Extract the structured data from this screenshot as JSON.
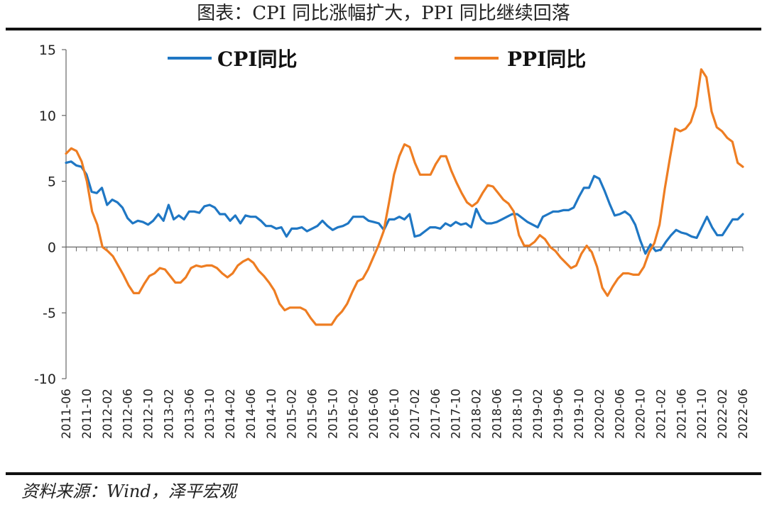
{
  "title": "图表：CPI 同比涨幅扩大，PPI 同比继续回落",
  "source": "资料来源：Wind，泽平宏观",
  "colors": {
    "cpi": "#1f77c4",
    "ppi": "#ee7d22",
    "axis": "#666666"
  },
  "chart_data": {
    "type": "line",
    "title": "图表：CPI 同比涨幅扩大，PPI 同比继续回落",
    "ylim": [
      -10,
      15
    ],
    "yticks": [
      15,
      10,
      5,
      0,
      -5,
      -10
    ],
    "grid": false,
    "legend_position": "top",
    "x_start": "2011-06",
    "x_end": "2022-06",
    "xtick_labels": [
      "2011-06",
      "2011-10",
      "2012-02",
      "2012-06",
      "2012-10",
      "2013-02",
      "2013-06",
      "2013-10",
      "2014-02",
      "2014-06",
      "2014-10",
      "2015-02",
      "2015-06",
      "2015-10",
      "2016-02",
      "2016-06",
      "2016-10",
      "2017-02",
      "2017-06",
      "2017-10",
      "2018-02",
      "2018-06",
      "2018-10",
      "2019-02",
      "2019-06",
      "2019-10",
      "2020-02",
      "2020-06",
      "2020-10",
      "2021-02",
      "2021-06",
      "2021-10",
      "2022-02",
      "2022-06"
    ],
    "series": [
      {
        "name": "CPI同比",
        "color": "#1f77c4",
        "values": [
          6.4,
          6.5,
          6.2,
          6.1,
          5.5,
          4.2,
          4.1,
          4.5,
          3.2,
          3.6,
          3.4,
          3.0,
          2.2,
          1.8,
          2.0,
          1.9,
          1.7,
          2.0,
          2.5,
          2.0,
          3.2,
          2.1,
          2.4,
          2.1,
          2.7,
          2.7,
          2.6,
          3.1,
          3.2,
          3.0,
          2.5,
          2.5,
          2.0,
          2.4,
          1.8,
          2.4,
          2.3,
          2.3,
          2.0,
          1.6,
          1.6,
          1.4,
          1.5,
          0.8,
          1.4,
          1.4,
          1.5,
          1.2,
          1.4,
          1.6,
          2.0,
          1.6,
          1.3,
          1.5,
          1.6,
          1.8,
          2.3,
          2.3,
          2.3,
          2.0,
          1.9,
          1.8,
          1.3,
          2.1,
          2.1,
          2.3,
          2.1,
          2.5,
          0.8,
          0.9,
          1.2,
          1.5,
          1.5,
          1.4,
          1.8,
          1.6,
          1.9,
          1.7,
          1.8,
          1.5,
          2.9,
          2.1,
          1.8,
          1.8,
          1.9,
          2.1,
          2.3,
          2.5,
          2.5,
          2.2,
          1.9,
          1.7,
          1.5,
          2.3,
          2.5,
          2.7,
          2.7,
          2.8,
          2.8,
          3.0,
          3.8,
          4.5,
          4.5,
          5.4,
          5.2,
          4.3,
          3.3,
          2.4,
          2.5,
          2.7,
          2.4,
          1.7,
          0.5,
          -0.5,
          0.2,
          -0.3,
          -0.2,
          0.4,
          0.9,
          1.3,
          1.1,
          1.0,
          0.8,
          0.7,
          1.5,
          2.3,
          1.5,
          0.9,
          0.9,
          1.5,
          2.1,
          2.1,
          2.5
        ]
      },
      {
        "name": "PPI同比",
        "color": "#ee7d22",
        "values": [
          7.1,
          7.5,
          7.3,
          6.5,
          5.0,
          2.7,
          1.7,
          0.0,
          -0.3,
          -0.7,
          -1.4,
          -2.1,
          -2.9,
          -3.5,
          -3.5,
          -2.8,
          -2.2,
          -2.0,
          -1.6,
          -1.7,
          -2.2,
          -2.7,
          -2.7,
          -2.3,
          -1.6,
          -1.4,
          -1.5,
          -1.4,
          -1.4,
          -1.6,
          -2.0,
          -2.3,
          -2.0,
          -1.4,
          -1.1,
          -0.9,
          -1.2,
          -1.8,
          -2.2,
          -2.7,
          -3.3,
          -4.3,
          -4.8,
          -4.6,
          -4.6,
          -4.6,
          -4.8,
          -5.4,
          -5.9,
          -5.9,
          -5.9,
          -5.9,
          -5.3,
          -4.9,
          -4.3,
          -3.4,
          -2.6,
          -2.4,
          -1.7,
          -0.8,
          0.1,
          1.2,
          3.3,
          5.5,
          6.9,
          7.8,
          7.6,
          6.4,
          5.5,
          5.5,
          5.5,
          6.3,
          6.9,
          6.9,
          5.8,
          4.9,
          4.1,
          3.4,
          3.1,
          3.4,
          4.1,
          4.7,
          4.6,
          4.1,
          3.6,
          3.3,
          2.7,
          0.9,
          0.1,
          0.1,
          0.4,
          0.9,
          0.6,
          0.0,
          -0.3,
          -0.8,
          -1.2,
          -1.6,
          -1.4,
          -0.5,
          0.1,
          -0.4,
          -1.5,
          -3.1,
          -3.7,
          -3.0,
          -2.4,
          -2.0,
          -2.0,
          -2.1,
          -2.1,
          -1.5,
          -0.4,
          0.3,
          1.7,
          4.4,
          6.8,
          9.0,
          8.8,
          9.0,
          9.5,
          10.7,
          13.5,
          12.9,
          10.3,
          9.1,
          8.8,
          8.3,
          8.0,
          6.4,
          6.1
        ]
      }
    ]
  }
}
